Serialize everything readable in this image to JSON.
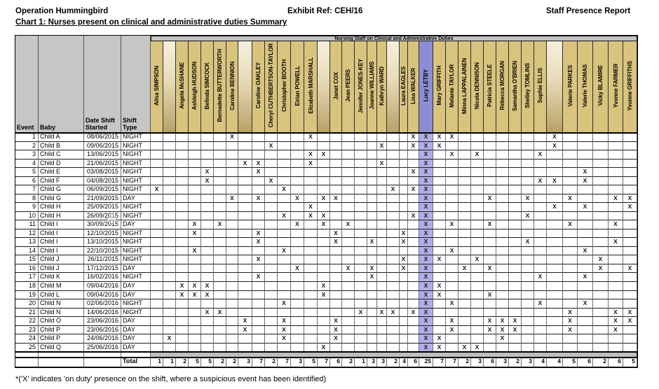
{
  "header": {
    "left": "Operation Hummingbird",
    "center": "Exhibit Ref: CEH/16",
    "right": "Staff Presence Report",
    "chart_title": "Chart 1: Nurses present on clinical and administrative duties Summary"
  },
  "table": {
    "banner": "Nursing Staff on Clinical and Administrative Duties",
    "left_headers": [
      "Event",
      "Baby",
      "Date Shift\nStarted",
      "Shift\nType"
    ],
    "total_label": "Total",
    "mark_char": "X",
    "staff": [
      {
        "name": "Ailsa SIMPSON",
        "blank": false
      },
      {
        "name": "",
        "blank": true
      },
      {
        "name": "Angela McSHANE",
        "blank": false
      },
      {
        "name": "Ashleigh HUDSON",
        "blank": false
      },
      {
        "name": "Belinda SIMCOCK",
        "blank": false
      },
      {
        "name": "Bernadette BUTTERWORTH",
        "blank": false
      },
      {
        "name": "Caroline BENNION",
        "blank": false
      },
      {
        "name": "",
        "blank": true
      },
      {
        "name": "Caroline OAKLEY",
        "blank": false
      },
      {
        "name": "Cheryl CUTHBERTSON-TAYLOR",
        "blank": false
      },
      {
        "name": "Christopher BOOTH",
        "blank": false
      },
      {
        "name": "Eirian POWELL",
        "blank": false
      },
      {
        "name": "Elizabeth MARSHALL",
        "blank": false
      },
      {
        "name": "",
        "blank": true
      },
      {
        "name": "Janet COX",
        "blank": false
      },
      {
        "name": "Jean PEERS",
        "blank": false
      },
      {
        "name": "Jennifer JONES-KEY",
        "blank": false
      },
      {
        "name": "Joanne WILLIAMS",
        "blank": false
      },
      {
        "name": "Kathryn WARD",
        "blank": false
      },
      {
        "name": "",
        "blank": true
      },
      {
        "name": "Laura EAGLES",
        "blank": false
      },
      {
        "name": "Lisa WALKER",
        "blank": false
      },
      {
        "name": "Lucy LETBY",
        "blank": false,
        "highlight": true
      },
      {
        "name": "Mary GRIFFITH",
        "blank": false
      },
      {
        "name": "Melanie TAYLOR",
        "blank": false
      },
      {
        "name": "Minna LAPPALAINEN",
        "blank": false
      },
      {
        "name": "Nicola DENNISON",
        "blank": false
      },
      {
        "name": "Patricia STEELE",
        "blank": false
      },
      {
        "name": "Rebecca MORGAN",
        "blank": false
      },
      {
        "name": "Samantha O'BRIEN",
        "blank": false
      },
      {
        "name": "Shelley TOMLINS",
        "blank": false
      },
      {
        "name": "Sophie ELLIS",
        "blank": false
      },
      {
        "name": "",
        "blank": true
      },
      {
        "name": "Valerie PARKES",
        "blank": false
      },
      {
        "name": "Valerie THOMAS",
        "blank": false
      },
      {
        "name": "Vicky BLAMIRE",
        "blank": false
      },
      {
        "name": "Yvonne FARMER",
        "blank": false
      },
      {
        "name": "Yvonne GRIFFITHS",
        "blank": false
      }
    ],
    "rows": [
      {
        "event": 1,
        "baby": "Child A",
        "date": "08/06/2015",
        "shift": "NIGHT",
        "marks": [
          7,
          13,
          22,
          23,
          24,
          25,
          33
        ]
      },
      {
        "event": 2,
        "baby": "Child B",
        "date": "09/06/2015",
        "shift": "NIGHT",
        "marks": [
          10,
          19,
          22,
          23,
          24,
          33
        ]
      },
      {
        "event": 3,
        "baby": "Child C",
        "date": "13/06/2015",
        "shift": "NIGHT",
        "marks": [
          13,
          14,
          23,
          25,
          27,
          32
        ]
      },
      {
        "event": 4,
        "baby": "Child D",
        "date": "21/06/2015",
        "shift": "NIGHT",
        "marks": [
          8,
          9,
          13,
          19,
          23
        ]
      },
      {
        "event": 5,
        "baby": "Child E",
        "date": "03/08/2015",
        "shift": "NIGHT",
        "marks": [
          5,
          9,
          22,
          23,
          35
        ]
      },
      {
        "event": 6,
        "baby": "Child F",
        "date": "04/08/2015",
        "shift": "NIGHT",
        "marks": [
          5,
          10,
          23,
          32,
          33,
          35
        ]
      },
      {
        "event": 7,
        "baby": "Child G",
        "date": "06/09/2015",
        "shift": "NIGHT",
        "marks": [
          1,
          11,
          20,
          22,
          23
        ]
      },
      {
        "event": 8,
        "baby": "Child G",
        "date": "21/09/2015",
        "shift": "DAY",
        "marks": [
          7,
          9,
          12,
          14,
          15,
          23,
          28,
          31,
          34,
          37,
          38
        ]
      },
      {
        "event": 9,
        "baby": "Child H",
        "date": "25/09/2015",
        "shift": "NIGHT",
        "marks": [
          13,
          23,
          33,
          35,
          38
        ]
      },
      {
        "event": 10,
        "baby": "Child H",
        "date": "26/09/2015",
        "shift": "NIGHT",
        "marks": [
          11,
          13,
          14,
          22,
          23,
          31
        ]
      },
      {
        "event": 11,
        "baby": "Child I",
        "date": "30/09/2015",
        "shift": "DAY",
        "marks": [
          4,
          6,
          12,
          14,
          16,
          23,
          25,
          28,
          34,
          37
        ]
      },
      {
        "event": 12,
        "baby": "Child I",
        "date": "12/10/2015",
        "shift": "NIGHT",
        "marks": [
          4,
          9,
          15,
          21,
          23
        ]
      },
      {
        "event": 13,
        "baby": "Child I",
        "date": "13/10/2015",
        "shift": "NIGHT",
        "marks": [
          9,
          15,
          18,
          21,
          23,
          31,
          37
        ]
      },
      {
        "event": 14,
        "baby": "Child I",
        "date": "22/10/2015",
        "shift": "NIGHT",
        "marks": [
          4,
          11,
          23,
          25,
          35
        ]
      },
      {
        "event": 15,
        "baby": "Child J",
        "date": "26/11/2015",
        "shift": "NIGHT",
        "marks": [
          9,
          21,
          23,
          24,
          27,
          36
        ]
      },
      {
        "event": 16,
        "baby": "Child J",
        "date": "17/12/2015",
        "shift": "DAY",
        "marks": [
          12,
          16,
          18,
          21,
          23,
          26,
          28,
          36,
          38
        ]
      },
      {
        "event": 17,
        "baby": "Child K",
        "date": "16/02/2016",
        "shift": "NIGHT",
        "marks": [
          9,
          18,
          23,
          32,
          35
        ]
      },
      {
        "event": 18,
        "baby": "Child M",
        "date": "09/04/2016",
        "shift": "DAY",
        "marks": [
          3,
          4,
          5,
          14,
          23,
          24
        ]
      },
      {
        "event": 19,
        "baby": "Child L",
        "date": "09/04/2016",
        "shift": "DAY",
        "marks": [
          3,
          4,
          5,
          14,
          23,
          24,
          28
        ]
      },
      {
        "event": 20,
        "baby": "Child N",
        "date": "02/06/2016",
        "shift": "NIGHT",
        "marks": [
          11,
          23,
          25,
          32,
          35
        ]
      },
      {
        "event": 21,
        "baby": "Child N",
        "date": "14/06/2016",
        "shift": "NIGHT",
        "marks": [
          5,
          6,
          17,
          19,
          20,
          22,
          23,
          34,
          37,
          38
        ]
      },
      {
        "event": 22,
        "baby": "Child O",
        "date": "23/06/2016",
        "shift": "DAY",
        "marks": [
          8,
          11,
          15,
          23,
          25,
          28,
          29,
          30,
          34,
          37,
          38
        ]
      },
      {
        "event": 23,
        "baby": "Child P",
        "date": "23/06/2016",
        "shift": "DAY",
        "marks": [
          8,
          11,
          15,
          23,
          25,
          28,
          29,
          30,
          34,
          37
        ]
      },
      {
        "event": 24,
        "baby": "Child P",
        "date": "24/06/2016",
        "shift": "DAY",
        "marks": [
          2,
          11,
          15,
          23,
          24,
          29
        ]
      },
      {
        "event": 25,
        "baby": "Child Q",
        "date": "25/06/2016",
        "shift": "DAY",
        "marks": [
          14,
          23,
          24,
          26,
          27
        ]
      }
    ],
    "totals": [
      1,
      1,
      2,
      5,
      5,
      2,
      2,
      3,
      7,
      2,
      7,
      3,
      5,
      7,
      6,
      2,
      1,
      3,
      3,
      2,
      4,
      6,
      25,
      7,
      7,
      2,
      3,
      6,
      3,
      2,
      3,
      4,
      4,
      5,
      6,
      2,
      6,
      5
    ]
  },
  "footnote": "*('X' indicates 'on duty' presence on the shift, where a suspicious event has been identified)",
  "colors": {
    "name_cell": "#d9c47e",
    "highlight_header": "#8d8dd6",
    "highlight_cell": "#afafe6",
    "banner_gray": "#c4c4c4",
    "header_gray": "#c6c6c6"
  }
}
